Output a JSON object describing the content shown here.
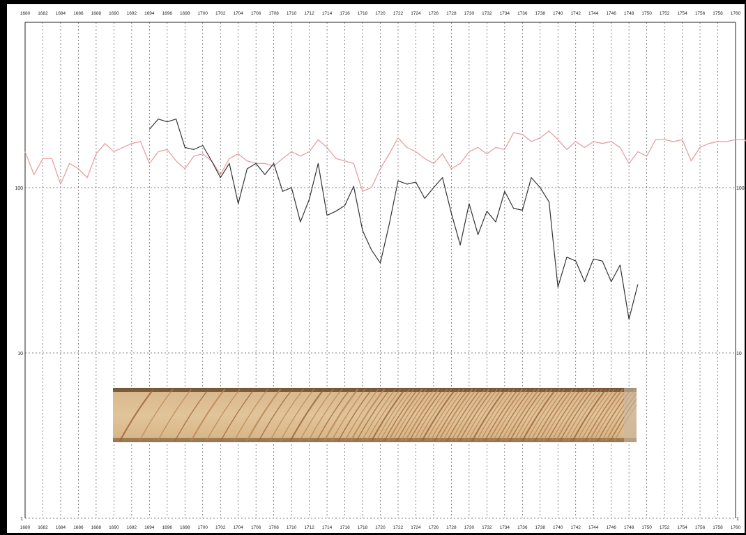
{
  "chart_data": {
    "type": "line",
    "title": "",
    "xlabel": "",
    "ylabel": "",
    "xlim": [
      1680,
      1760
    ],
    "x_tick_step": 2,
    "yscale": "log",
    "ylim": [
      1,
      1000
    ],
    "y_ticks": [
      1,
      10,
      100
    ],
    "grid": true,
    "series": [
      {
        "color": "#e8a0a0",
        "x_start": 1680,
        "values": [
          165,
          120,
          150,
          150,
          105,
          140,
          130,
          115,
          160,
          185,
          165,
          175,
          185,
          190,
          140,
          165,
          170,
          145,
          130,
          155,
          160,
          145,
          120,
          150,
          160,
          145,
          140,
          140,
          135,
          150,
          165,
          155,
          165,
          195,
          175,
          150,
          145,
          140,
          95,
          100,
          130,
          160,
          200,
          175,
          165,
          150,
          140,
          160,
          130,
          140,
          165,
          175,
          160,
          175,
          170,
          215,
          210,
          190,
          200,
          220,
          195,
          170,
          190,
          175,
          190,
          185,
          190,
          175,
          140,
          165,
          155,
          195,
          195,
          190,
          195,
          145,
          175,
          185,
          190,
          190,
          195,
          195,
          175
        ]
      },
      {
        "color": "#333333",
        "x_start": 1694,
        "values": [
          225,
          260,
          250,
          260,
          175,
          170,
          180,
          145,
          115,
          140,
          80,
          130,
          140,
          120,
          140,
          95,
          100,
          62,
          85,
          140,
          68,
          72,
          78,
          102,
          55,
          42,
          35,
          60,
          110,
          105,
          108,
          86,
          100,
          115,
          70,
          45,
          80,
          52,
          72,
          62,
          95,
          75,
          73,
          115,
          100,
          82,
          25,
          38,
          36,
          27,
          37,
          36,
          27,
          34,
          16,
          26
        ]
      }
    ],
    "image": {
      "description": "wood cross-section"
    }
  }
}
